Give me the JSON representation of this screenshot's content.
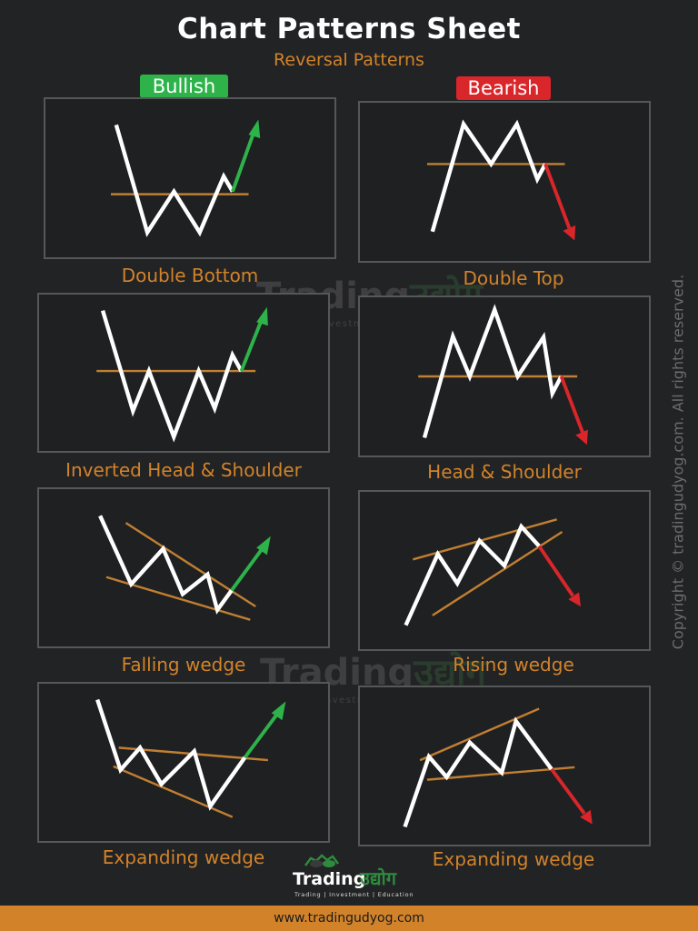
{
  "title": "Chart Patterns Sheet",
  "subtitle": "Reversal Patterns",
  "badges": {
    "bullish": "Bullish",
    "bearish": "Bearish"
  },
  "colors": {
    "bullish": "#2db34a",
    "bearish": "#d8262a",
    "accent": "#d2832a",
    "line": "#ffffff",
    "trendline": "#c07f32"
  },
  "patterns": [
    {
      "label": "Double Bottom"
    },
    {
      "label": "Double Top"
    },
    {
      "label": "Inverted Head & Shoulder"
    },
    {
      "label": "Head & Shoulder"
    },
    {
      "label": "Falling wedge"
    },
    {
      "label": "Rising wedge"
    },
    {
      "label": "Expanding wedge"
    },
    {
      "label": "Expanding wedge"
    }
  ],
  "copyright": "Copyright © tradingudyog.com. All rights reserved.",
  "watermark": {
    "brand": "Trading",
    "brand_hindi": "उद्योग",
    "tagline": "Trading | Investment | Education"
  },
  "logo": {
    "brand": "Trading",
    "brand_hindi": "उद्योग",
    "tagline": "Trading | Investment | Education",
    "icon": "bull-bear-icon"
  },
  "footer": {
    "url": "www.tradingudyog.com"
  }
}
